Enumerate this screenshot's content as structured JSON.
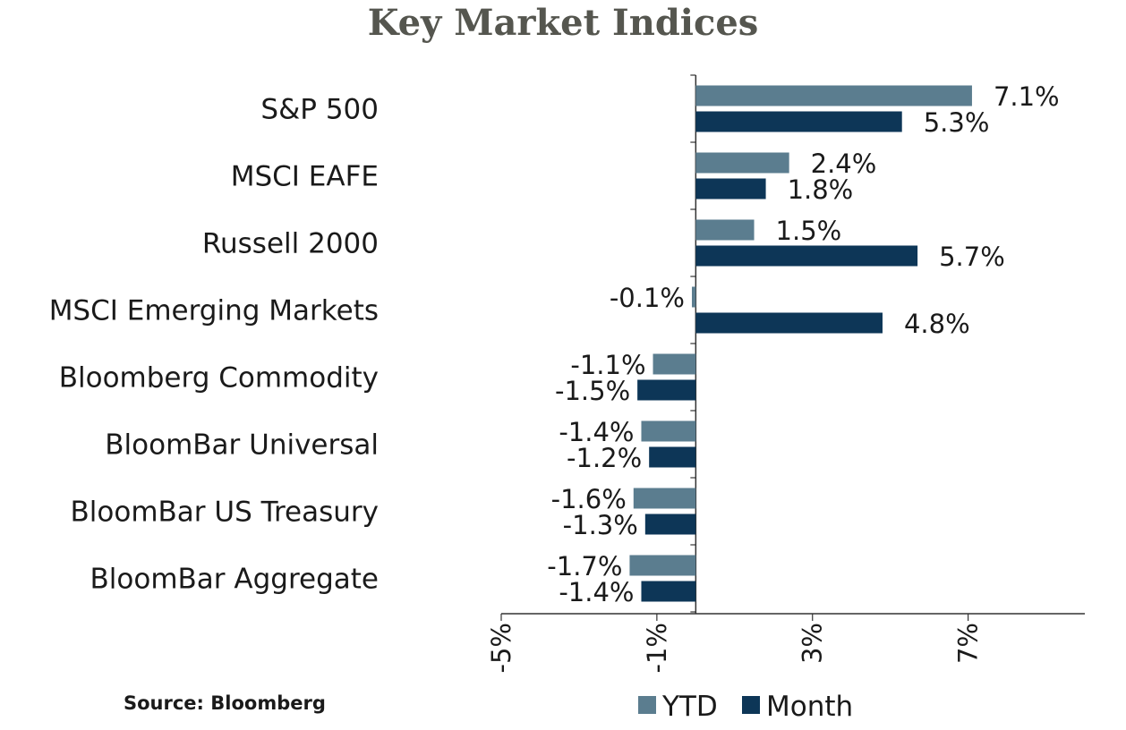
{
  "title": "Key Market Indices",
  "source": "Source: Bloomberg",
  "colors": {
    "ytd": "#5b7d8f",
    "month": "#0d3657",
    "axis": "#333333"
  },
  "chart_data": {
    "type": "bar",
    "orientation": "horizontal",
    "title": "Key Market Indices",
    "categories": [
      "S&P 500",
      "MSCI EAFE",
      "Russell 2000",
      "MSCI Emerging Markets",
      "Bloomberg Commodity",
      "BloomBar Universal",
      "BloomBar US Treasury",
      "BloomBar Aggregate"
    ],
    "series": [
      {
        "name": "YTD",
        "values": [
          7.1,
          2.4,
          1.5,
          -0.1,
          -1.1,
          -1.4,
          -1.6,
          -1.7
        ],
        "labels": [
          "7.1%",
          "2.4%",
          "1.5%",
          "-0.1%",
          "-1.1%",
          "-1.4%",
          "-1.6%",
          "-1.7%"
        ]
      },
      {
        "name": "Month",
        "values": [
          5.3,
          1.8,
          5.7,
          4.8,
          -1.5,
          -1.2,
          -1.3,
          -1.4
        ],
        "labels": [
          "5.3%",
          "1.8%",
          "5.7%",
          "4.8%",
          "-1.5%",
          "-1.2%",
          "-1.3%",
          "-1.4%"
        ]
      }
    ],
    "xlim": [
      -5,
      10
    ],
    "xticks": [
      -5,
      -1,
      3,
      7
    ],
    "xtick_labels": [
      "-5%",
      "-1%",
      "3%",
      "7%"
    ],
    "legend": "bottom",
    "grid": false
  }
}
